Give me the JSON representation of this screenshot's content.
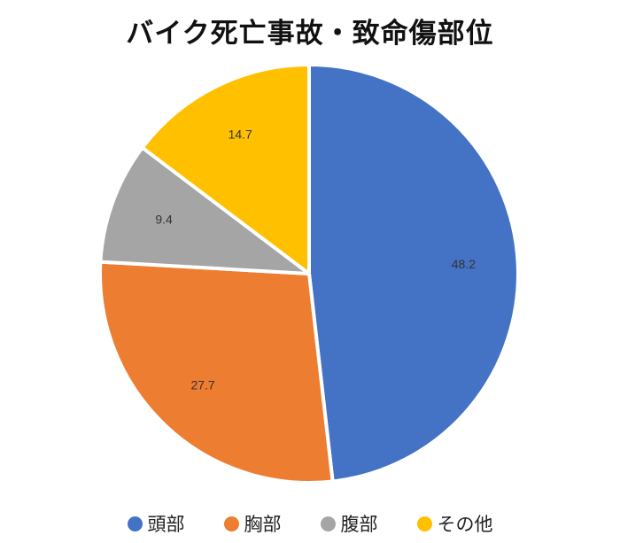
{
  "chart_data": {
    "type": "pie",
    "title": "バイク死亡事故・致命傷部位",
    "categories": [
      "頭部",
      "胸部",
      "腹部",
      "その他"
    ],
    "values": [
      48.2,
      27.7,
      9.4,
      14.7
    ],
    "data_labels": [
      "48.2",
      "27.7",
      "9.4",
      "14.7"
    ],
    "colors": [
      "#4472C4",
      "#ED7D31",
      "#A5A5A5",
      "#FFC000"
    ],
    "legend_position": "bottom",
    "start_angle": "12 o'clock",
    "direction": "clockwise"
  },
  "legend": {
    "items": [
      {
        "label": "頭部",
        "color": "#4472C4"
      },
      {
        "label": "胸部",
        "color": "#ED7D31"
      },
      {
        "label": "腹部",
        "color": "#A5A5A5"
      },
      {
        "label": "その他",
        "color": "#FFC000"
      }
    ]
  }
}
